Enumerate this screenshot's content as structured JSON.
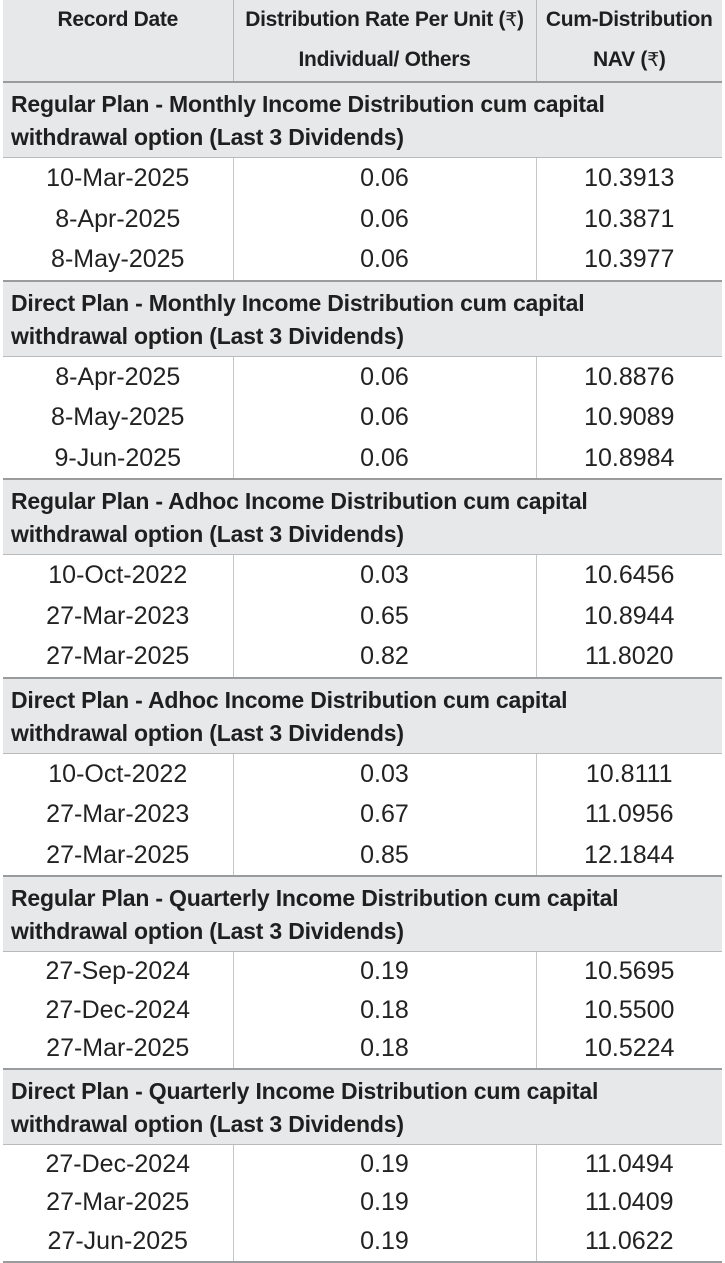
{
  "header": {
    "col_record_date": "Record Date",
    "col_rate_line1": "Distribution Rate Per Unit",
    "col_rate_line2": "Individual/ Others",
    "col_nav_line1": "Cum-Distribution",
    "col_nav_line2": "NAV",
    "currency_symbol": "₹"
  },
  "sections": [
    {
      "title_line1": "Regular Plan - Monthly Income Distribution cum capital",
      "title_line2": "withdrawal option (Last 3 Dividends)",
      "rows": [
        {
          "date": "10-Mar-2025",
          "rate": "0.06",
          "nav": "10.3913"
        },
        {
          "date": "8-Apr-2025",
          "rate": "0.06",
          "nav": "10.3871"
        },
        {
          "date": "8-May-2025",
          "rate": "0.06",
          "nav": "10.3977"
        }
      ]
    },
    {
      "title_line1": "Direct Plan - Monthly Income Distribution cum capital",
      "title_line2": "withdrawal option (Last 3 Dividends)",
      "rows": [
        {
          "date": "8-Apr-2025",
          "rate": "0.06",
          "nav": "10.8876"
        },
        {
          "date": "8-May-2025",
          "rate": "0.06",
          "nav": "10.9089"
        },
        {
          "date": "9-Jun-2025",
          "rate": "0.06",
          "nav": "10.8984"
        }
      ]
    },
    {
      "title_line1": "Regular Plan - Adhoc Income Distribution cum capital",
      "title_line2": "withdrawal option (Last 3 Dividends)",
      "rows": [
        {
          "date": "10-Oct-2022",
          "rate": "0.03",
          "nav": "10.6456"
        },
        {
          "date": "27-Mar-2023",
          "rate": "0.65",
          "nav": "10.8944"
        },
        {
          "date": "27-Mar-2025",
          "rate": "0.82",
          "nav": "11.8020"
        }
      ]
    },
    {
      "title_line1": "Direct Plan - Adhoc Income Distribution cum capital",
      "title_line2": "withdrawal option (Last 3 Dividends)",
      "rows": [
        {
          "date": "10-Oct-2022",
          "rate": "0.03",
          "nav": "10.8111"
        },
        {
          "date": "27-Mar-2023",
          "rate": "0.67",
          "nav": "11.0956"
        },
        {
          "date": "27-Mar-2025",
          "rate": "0.85",
          "nav": "12.1844"
        }
      ]
    },
    {
      "title_line1": "Regular Plan - Quarterly Income Distribution cum capital",
      "title_line2": "withdrawal option (Last 3 Dividends)",
      "rows": [
        {
          "date": "27-Sep-2024",
          "rate": "0.19",
          "nav": "10.5695"
        },
        {
          "date": "27-Dec-2024",
          "rate": "0.18",
          "nav": "10.5500"
        },
        {
          "date": "27-Mar-2025",
          "rate": "0.18",
          "nav": "10.5224"
        }
      ]
    },
    {
      "title_line1": "Direct Plan - Quarterly Income Distribution cum capital",
      "title_line2": "withdrawal option (Last 3 Dividends)",
      "rows": [
        {
          "date": "27-Dec-2024",
          "rate": "0.19",
          "nav": "11.0494"
        },
        {
          "date": "27-Mar-2025",
          "rate": "0.19",
          "nav": "11.0409"
        },
        {
          "date": "27-Jun-2025",
          "rate": "0.19",
          "nav": "11.0622"
        }
      ]
    }
  ]
}
